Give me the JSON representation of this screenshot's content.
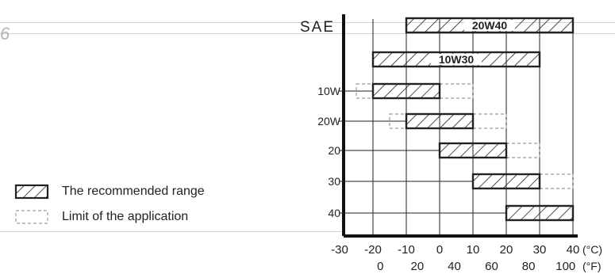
{
  "page": {
    "page_number_fragment": "6"
  },
  "legend": {
    "recommended_label": "The recommended range",
    "limit_label": "Limit of the application"
  },
  "chart_data": {
    "type": "range-bar",
    "y_title": "SAE",
    "x_units_c": "(°C)",
    "x_units_f": "(°F)",
    "x_ticks_c": [
      -30,
      -20,
      -10,
      0,
      10,
      20,
      30,
      40
    ],
    "x_ticks_f": [
      0,
      20,
      40,
      60,
      80,
      100
    ],
    "x_ticks_f_celsius": [
      -17.8,
      -6.7,
      4.4,
      15.6,
      26.7,
      37.8
    ],
    "xlim_c": [
      -30,
      40
    ],
    "grades": [
      {
        "label": "20W40",
        "recommended": [
          -10,
          40
        ],
        "limits": [],
        "label_inside": true
      },
      {
        "label": "10W30",
        "recommended": [
          -20,
          30
        ],
        "limits": [],
        "label_inside": true
      },
      {
        "label": "10W",
        "recommended": [
          -20,
          0
        ],
        "limits": [
          [
            -25,
            -20
          ],
          [
            0,
            10
          ]
        ],
        "label_inside": false
      },
      {
        "label": "20W",
        "recommended": [
          -10,
          10
        ],
        "limits": [
          [
            -15,
            -10
          ],
          [
            10,
            20
          ]
        ],
        "label_inside": false
      },
      {
        "label": "20",
        "recommended": [
          0,
          20
        ],
        "limits": [
          [
            20,
            30
          ]
        ],
        "label_inside": false
      },
      {
        "label": "30",
        "recommended": [
          10,
          30
        ],
        "limits": [
          [
            30,
            40
          ]
        ],
        "label_inside": false
      },
      {
        "label": "40",
        "recommended": [
          20,
          40
        ],
        "limits": [],
        "label_inside": false
      }
    ]
  }
}
